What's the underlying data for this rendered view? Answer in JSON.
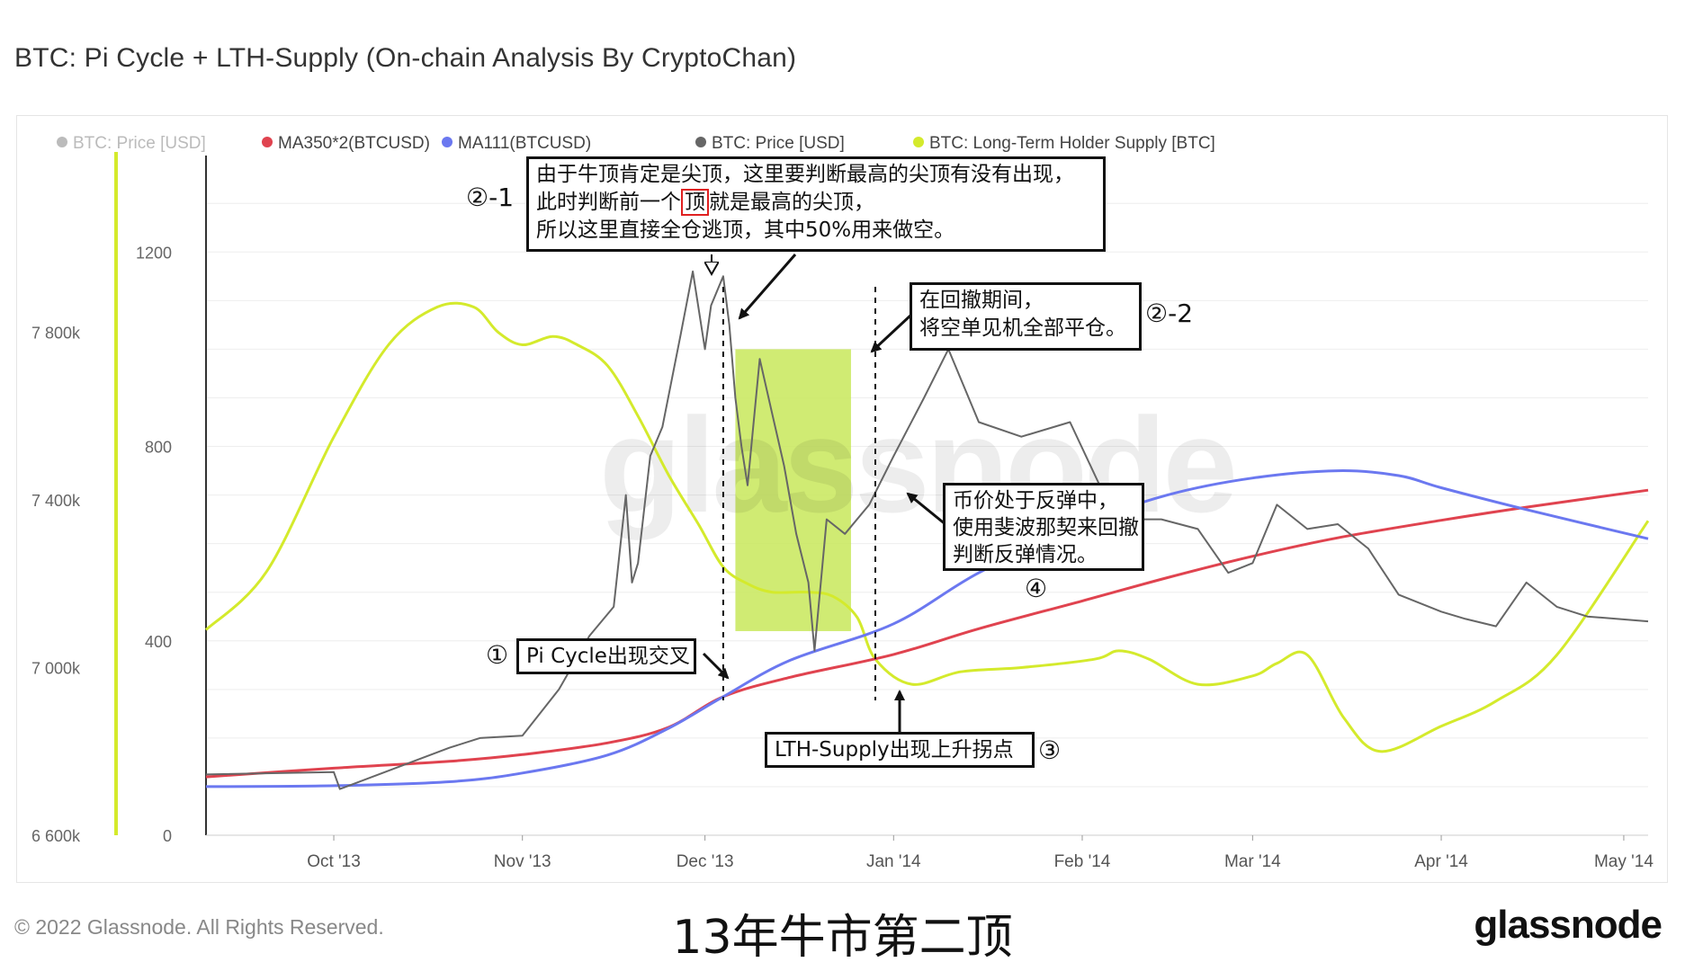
{
  "title": "BTC: Pi Cycle + LTH-Supply  (On-chain Analysis By CryptoChan)",
  "footer": {
    "copyright": "© 2022 Glassnode. All Rights Reserved.",
    "caption": "13年牛市第二顶",
    "logo": "glassnode"
  },
  "watermark": "glassnode",
  "colors": {
    "price": "#666666",
    "price_faded": "#bbbbbb",
    "ma350x2": "#e0434f",
    "ma111": "#6b78f0",
    "lth_supply": "#d4ea2c",
    "highlight": "#c8e85a",
    "grid": "#eeeeee"
  },
  "chart_data": {
    "type": "line",
    "legend_position": "top-left",
    "legend": [
      {
        "label": "BTC: Price [USD]",
        "color": "#bbbbbb",
        "faded": true
      },
      {
        "label": "MA350*2(BTCUSD)",
        "color": "#e0434f"
      },
      {
        "label": "MA111(BTCUSD)",
        "color": "#6b78f0"
      },
      {
        "label": "BTC: Price [USD]",
        "color": "#666666"
      },
      {
        "label": "BTC: Long-Term Holder Supply [BTC]",
        "color": "#d4ea2c"
      }
    ],
    "x_ticks": [
      {
        "date": "2013-10-01",
        "label": "Oct '13"
      },
      {
        "date": "2013-11-01",
        "label": "Nov '13"
      },
      {
        "date": "2013-12-01",
        "label": "Dec '13"
      },
      {
        "date": "2014-01-01",
        "label": "Jan '14"
      },
      {
        "date": "2014-02-01",
        "label": "Feb '14"
      },
      {
        "date": "2014-03-01",
        "label": "Mar '14"
      },
      {
        "date": "2014-04-01",
        "label": "Apr '14"
      },
      {
        "date": "2014-05-01",
        "label": "May '14"
      }
    ],
    "xlim": [
      "2013-09-10",
      "2014-05-05"
    ],
    "y_price": {
      "ticks": [
        0,
        400,
        800,
        1200
      ],
      "labels": [
        "0",
        "400",
        "800",
        "1200"
      ],
      "ylim": [
        0,
        1380
      ]
    },
    "y_supply": {
      "ticks": [
        6600000,
        7000000,
        7400000,
        7800000
      ],
      "labels": [
        "6 600k",
        "7 000k",
        "7 400k",
        "7 800k"
      ],
      "ylim": [
        6600000,
        8200000
      ]
    },
    "series": [
      {
        "key": "lth",
        "name": "BTC: Long-Term Holder Supply [BTC]",
        "axis": "supply",
        "x": [
          "2013-09-10",
          "2013-09-20",
          "2013-10-01",
          "2013-10-10",
          "2013-10-18",
          "2013-10-24",
          "2013-10-28",
          "2013-11-01",
          "2013-11-06",
          "2013-11-10",
          "2013-11-15",
          "2013-11-20",
          "2013-11-25",
          "2013-11-30",
          "2013-12-04",
          "2013-12-08",
          "2013-12-12",
          "2013-12-18",
          "2013-12-22",
          "2013-12-26",
          "2013-12-29",
          "2014-01-04",
          "2014-01-12",
          "2014-01-22",
          "2014-02-03",
          "2014-02-07",
          "2014-02-12",
          "2014-02-20",
          "2014-03-01",
          "2014-03-05",
          "2014-03-10",
          "2014-03-16",
          "2014-03-22",
          "2014-04-01",
          "2014-04-10",
          "2014-04-20",
          "2014-05-05"
        ],
        "values": [
          7090000,
          7230000,
          7550000,
          7770000,
          7860000,
          7860000,
          7800000,
          7770000,
          7790000,
          7770000,
          7720000,
          7600000,
          7460000,
          7340000,
          7240000,
          7200000,
          7180000,
          7180000,
          7170000,
          7120000,
          7020000,
          6960000,
          6990000,
          7000000,
          7020000,
          7040000,
          7020000,
          6960000,
          6980000,
          7010000,
          7030000,
          6880000,
          6800000,
          6860000,
          6920000,
          7030000,
          7350000
        ]
      },
      {
        "key": "ma350x2",
        "name": "MA350*2(BTCUSD)",
        "axis": "price",
        "x": [
          "2013-09-10",
          "2013-10-01",
          "2013-10-20",
          "2013-11-01",
          "2013-11-15",
          "2013-11-25",
          "2013-12-04",
          "2013-12-15",
          "2014-01-01",
          "2014-01-15",
          "2014-02-01",
          "2014-02-15",
          "2014-03-01",
          "2014-03-15",
          "2014-04-01",
          "2014-04-15",
          "2014-05-05"
        ],
        "values": [
          120,
          138,
          152,
          166,
          190,
          222,
          285,
          325,
          372,
          425,
          482,
          530,
          574,
          612,
          648,
          675,
          710
        ]
      },
      {
        "key": "ma111",
        "name": "MA111(BTCUSD)",
        "axis": "price",
        "x": [
          "2013-09-10",
          "2013-10-01",
          "2013-10-20",
          "2013-11-01",
          "2013-11-15",
          "2013-11-25",
          "2013-12-04",
          "2013-12-15",
          "2014-01-01",
          "2014-01-15",
          "2014-02-01",
          "2014-02-15",
          "2014-03-01",
          "2014-03-15",
          "2014-03-25",
          "2014-04-01",
          "2014-04-15",
          "2014-05-05"
        ],
        "values": [
          100,
          102,
          110,
          128,
          165,
          220,
          285,
          360,
          435,
          540,
          640,
          700,
          735,
          750,
          740,
          715,
          670,
          610
        ]
      },
      {
        "key": "price",
        "name": "BTC: Price [USD]",
        "axis": "price",
        "x": [
          "2013-09-10",
          "2013-10-01",
          "2013-10-02",
          "2013-10-20",
          "2013-10-25",
          "2013-11-01",
          "2013-11-07",
          "2013-11-12",
          "2013-11-16",
          "2013-11-18",
          "2013-11-19",
          "2013-11-20",
          "2013-11-22",
          "2013-11-24",
          "2013-11-27",
          "2013-11-29",
          "2013-12-01",
          "2013-12-02",
          "2013-12-04",
          "2013-12-05",
          "2013-12-06",
          "2013-12-07",
          "2013-12-08",
          "2013-12-10",
          "2013-12-12",
          "2013-12-14",
          "2013-12-16",
          "2013-12-18",
          "2013-12-19",
          "2013-12-21",
          "2013-12-24",
          "2013-12-28",
          "2014-01-01",
          "2014-01-06",
          "2014-01-10",
          "2014-01-15",
          "2014-01-22",
          "2014-01-30",
          "2014-02-05",
          "2014-02-10",
          "2014-02-14",
          "2014-02-20",
          "2014-02-25",
          "2014-03-01",
          "2014-03-05",
          "2014-03-10",
          "2014-03-15",
          "2014-03-20",
          "2014-03-25",
          "2014-04-01",
          "2014-04-05",
          "2014-04-10",
          "2014-04-15",
          "2014-04-20",
          "2014-04-25",
          "2014-05-05"
        ],
        "values": [
          125,
          130,
          95,
          180,
          200,
          205,
          300,
          410,
          470,
          700,
          520,
          560,
          780,
          840,
          1030,
          1160,
          1000,
          1090,
          1150,
          1050,
          900,
          800,
          720,
          980,
          870,
          760,
          620,
          520,
          380,
          650,
          620,
          680,
          780,
          900,
          1000,
          850,
          820,
          850,
          690,
          650,
          650,
          630,
          540,
          560,
          680,
          630,
          640,
          590,
          495,
          460,
          445,
          430,
          520,
          470,
          450,
          440
        ]
      }
    ],
    "highlight_range": {
      "x": [
        "2013-12-06",
        "2013-12-25"
      ],
      "y": [
        420,
        1000
      ]
    },
    "vlines": [
      "2013-12-04",
      "2013-12-29"
    ]
  },
  "annotations": [
    {
      "id": "a21",
      "lines": [
        "由于牛顶肯定是尖顶，这里要判断最高的尖顶有没有出现，",
        "此时判断前一个 顶 就是最高的尖顶，",
        "所以这里直接全仓逃顶，其中50%用来做空。"
      ],
      "marker": "②-1",
      "boxed_word": "顶"
    },
    {
      "id": "a22",
      "lines": [
        "在回撤期间，",
        "将空单见机全部平仓。"
      ],
      "marker": "②-2"
    },
    {
      "id": "a4",
      "lines": [
        "币价处于反弹中，",
        "使用斐波那契来回撤",
        "判断反弹情况。"
      ],
      "marker": "④"
    },
    {
      "id": "a1",
      "lines": [
        "Pi Cycle出现交叉"
      ],
      "marker": "①"
    },
    {
      "id": "a3",
      "lines": [
        "LTH-Supply出现上升拐点"
      ],
      "marker": "③"
    }
  ]
}
